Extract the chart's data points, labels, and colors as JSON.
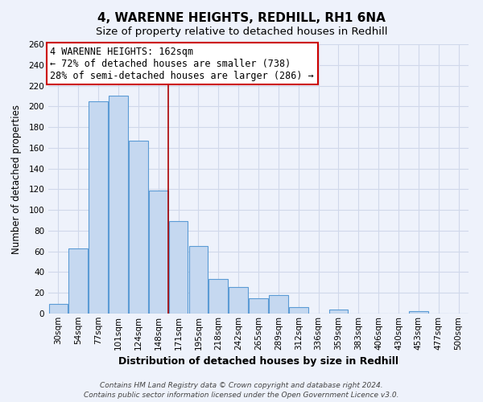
{
  "title": "4, WARENNE HEIGHTS, REDHILL, RH1 6NA",
  "subtitle": "Size of property relative to detached houses in Redhill",
  "xlabel": "Distribution of detached houses by size in Redhill",
  "ylabel": "Number of detached properties",
  "bar_labels": [
    "30sqm",
    "54sqm",
    "77sqm",
    "101sqm",
    "124sqm",
    "148sqm",
    "171sqm",
    "195sqm",
    "218sqm",
    "242sqm",
    "265sqm",
    "289sqm",
    "312sqm",
    "336sqm",
    "359sqm",
    "383sqm",
    "406sqm",
    "430sqm",
    "453sqm",
    "477sqm",
    "500sqm"
  ],
  "bar_values": [
    9,
    63,
    205,
    210,
    167,
    119,
    89,
    65,
    33,
    26,
    15,
    18,
    6,
    0,
    4,
    0,
    0,
    0,
    2,
    0,
    0
  ],
  "bar_color": "#c5d8f0",
  "bar_edge_color": "#5b9bd5",
  "threshold_index": 6,
  "annotation_title": "4 WARENNE HEIGHTS: 162sqm",
  "annotation_line1": "← 72% of detached houses are smaller (738)",
  "annotation_line2": "28% of semi-detached houses are larger (286) →",
  "annotation_box_facecolor": "#ffffff",
  "annotation_box_edgecolor": "#cc0000",
  "threshold_line_color": "#aa0000",
  "ylim": [
    0,
    260
  ],
  "yticks": [
    0,
    20,
    40,
    60,
    80,
    100,
    120,
    140,
    160,
    180,
    200,
    220,
    240,
    260
  ],
  "footer1": "Contains HM Land Registry data © Crown copyright and database right 2024.",
  "footer2": "Contains public sector information licensed under the Open Government Licence v3.0.",
  "bg_color": "#eef2fb",
  "plot_bg_color": "#eef2fb",
  "grid_color": "#d0d8ea",
  "title_fontsize": 11,
  "subtitle_fontsize": 9.5,
  "xlabel_fontsize": 9,
  "ylabel_fontsize": 8.5,
  "tick_fontsize": 7.5,
  "annot_fontsize": 8.5,
  "footer_fontsize": 6.5
}
